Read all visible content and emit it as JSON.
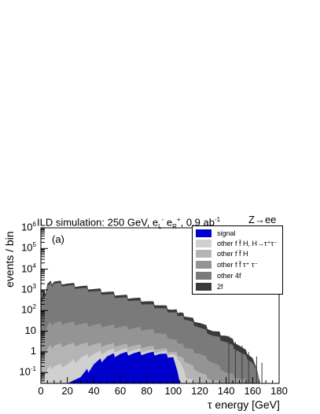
{
  "header": {
    "title_prefix": "ILD simulation: 250 GeV, e",
    "title_beam": "L",
    "title_beam2_sup": "+",
    "title_beam2_sub": "R",
    "title_lumi": ", 0.9 ab",
    "title_lumi_sup": "-1",
    "channel": "Z→ee",
    "panel": "(a)"
  },
  "chart_data": {
    "type": "area",
    "xlabel": "τ energy [GeV]",
    "ylabel": "events / bin",
    "xlim": [
      0,
      180
    ],
    "ylim": [
      0.03,
      1000000
    ],
    "log_y": true,
    "x_ticks": [
      "0",
      "20",
      "40",
      "60",
      "80",
      "100",
      "120",
      "140",
      "160",
      "180"
    ],
    "y_ticks": [
      {
        "base": "10",
        "exp": "6",
        "value": 1000000
      },
      {
        "base": "10",
        "exp": "5",
        "value": 100000
      },
      {
        "base": "10",
        "exp": "4",
        "value": 10000
      },
      {
        "base": "10",
        "exp": "3",
        "value": 1000
      },
      {
        "base": "10",
        "exp": "2",
        "value": 100
      },
      {
        "base": "10",
        "exp": "",
        "value": 10
      },
      {
        "base": "1",
        "exp": "",
        "value": 1
      },
      {
        "base": "10",
        "exp": "-1",
        "value": 0.1
      }
    ],
    "x": [
      0,
      5,
      10,
      20,
      30,
      40,
      50,
      60,
      70,
      80,
      90,
      100,
      105,
      110,
      120,
      130,
      140,
      150,
      160,
      165
    ],
    "series": [
      {
        "name": "2f",
        "color": "#3a3a3a",
        "values": [
          300,
          2000,
          2500,
          2000,
          1500,
          1100,
          800,
          550,
          400,
          280,
          180,
          110,
          80,
          50,
          25,
          10,
          6,
          2,
          0.5,
          0.05
        ]
      },
      {
        "name": "other 4f",
        "color": "#7a7a7a",
        "values": [
          200,
          1500,
          2000,
          1600,
          1200,
          850,
          600,
          420,
          300,
          200,
          130,
          80,
          55,
          35,
          15,
          6,
          3,
          1,
          0.3,
          0.05
        ]
      },
      {
        "name": "other f f̄ τ⁺ τ⁻",
        "color": "#949494",
        "values": [
          3,
          20,
          25,
          25,
          22,
          20,
          18,
          16,
          14,
          12,
          8,
          4,
          2.5,
          1.5,
          0.8,
          0.3,
          0.1,
          0.05,
          0.03,
          0.03
        ]
      },
      {
        "name": "other f f̄ H",
        "color": "#b4b4b4",
        "values": [
          0.5,
          1.5,
          2,
          2.2,
          2.3,
          2.3,
          2.2,
          2.1,
          2,
          1.8,
          1.4,
          1,
          0.6,
          0.3,
          0.1,
          0.04,
          0.03,
          0.03,
          0.03,
          0.03
        ]
      },
      {
        "name": "other f f̄ H, H→τ⁺τ⁻",
        "color": "#d0d0d0",
        "values": [
          0.05,
          0.15,
          0.2,
          0.25,
          0.5,
          0.8,
          1.1,
          1.2,
          1.2,
          1.1,
          1,
          0.8,
          0.35,
          0.05,
          0.03,
          0.03,
          0.03,
          0.03,
          0.03,
          0.03
        ]
      },
      {
        "name": "signal",
        "color": "#0000cc",
        "values": [
          0,
          0,
          0,
          0,
          0.06,
          0.25,
          0.6,
          0.8,
          0.85,
          0.85,
          0.8,
          0.55,
          0,
          0,
          0,
          0,
          0,
          0,
          0,
          0
        ]
      }
    ],
    "legend_position": "top-right"
  }
}
